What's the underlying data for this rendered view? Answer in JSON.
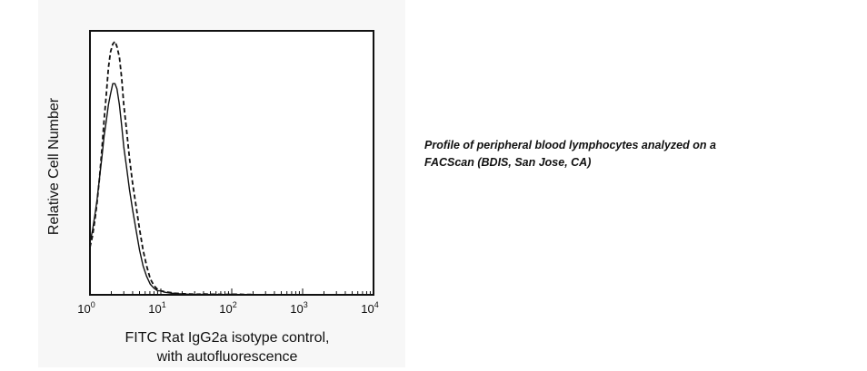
{
  "chart_data": {
    "type": "line",
    "title": "",
    "xlabel_lines": [
      "FITC Rat IgG2a isotype control,",
      "with autofluorescence"
    ],
    "ylabel": "Relative Cell Number",
    "x_scale": "log",
    "xlim": [
      1,
      10000
    ],
    "ylim": [
      0,
      100
    ],
    "x_ticks": [
      {
        "base": "10",
        "exp": "0",
        "value": 1
      },
      {
        "base": "10",
        "exp": "1",
        "value": 10
      },
      {
        "base": "10",
        "exp": "2",
        "value": 100
      },
      {
        "base": "10",
        "exp": "3",
        "value": 1000
      },
      {
        "base": "10",
        "exp": "4",
        "value": 10000
      }
    ],
    "grid": false,
    "legend": "none",
    "series": [
      {
        "style": "solid",
        "color": "#111111",
        "x": [
          1.0,
          1.08,
          1.17,
          1.26,
          1.36,
          1.47,
          1.58,
          1.7,
          1.82,
          1.95,
          2.1,
          2.25,
          2.4,
          2.6,
          2.8,
          3.0,
          3.3,
          3.6,
          4.0,
          4.5,
          5.0,
          5.6,
          6.3,
          7.1,
          8.0,
          9.0,
          10.0,
          11.2,
          12.6,
          14.1,
          15.8,
          17.8,
          20.0,
          25.1,
          31.6,
          39.8,
          50.1,
          63.1,
          79.4,
          100.0,
          125.9,
          158.5,
          199.5
        ],
        "y": [
          20,
          24,
          30,
          36,
          44,
          52,
          60,
          66,
          72,
          76,
          80,
          80,
          78,
          72,
          64,
          56,
          48,
          40,
          32,
          24,
          17,
          11,
          7,
          4,
          2.5,
          1.5,
          1.5,
          1.0,
          0.8,
          0.6,
          0.6,
          0.4,
          0.3,
          0.2,
          0.1,
          0.2,
          0.1,
          0.1,
          0.1,
          0.2,
          0.1,
          0.1,
          0.1
        ]
      },
      {
        "style": "dashed",
        "color": "#111111",
        "x": [
          1.0,
          1.08,
          1.17,
          1.26,
          1.36,
          1.47,
          1.58,
          1.7,
          1.82,
          1.95,
          2.1,
          2.25,
          2.4,
          2.6,
          2.8,
          3.0,
          3.3,
          3.6,
          4.0,
          4.5,
          5.0,
          5.6,
          6.3,
          7.1,
          8.0,
          9.0,
          10.0,
          11.2,
          12.6,
          14.1,
          15.8,
          17.8,
          20.0,
          25.1,
          31.6,
          39.8,
          50.1,
          63.1,
          79.4,
          100.0,
          125.9,
          158.5,
          199.5
        ],
        "y": [
          18,
          22,
          28,
          35,
          44,
          55,
          66,
          76,
          86,
          92,
          95,
          96,
          94,
          90,
          82,
          72,
          62,
          52,
          42,
          33,
          25,
          17,
          11,
          6,
          3.5,
          2,
          1.5,
          1.2,
          1.0,
          0.8,
          0.6,
          0.5,
          0.4,
          0.3,
          0.2,
          0.3,
          0.2,
          0.2,
          0.1,
          0.2,
          0.2,
          0.1,
          0.1
        ]
      }
    ]
  },
  "caption": {
    "line1": "Profile of peripheral blood lymphocytes analyzed on a",
    "line2": "FACScan (BDIS, San Jose, CA)"
  }
}
